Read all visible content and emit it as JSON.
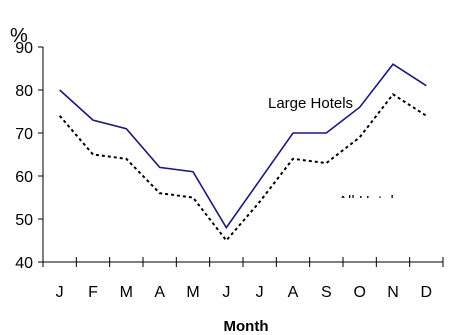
{
  "chart_data": {
    "type": "line",
    "ylabel": "%",
    "xlabel": "Month",
    "categories": [
      "J",
      "F",
      "M",
      "A",
      "M",
      "J",
      "J",
      "A",
      "S",
      "O",
      "N",
      "D"
    ],
    "ylim": [
      40,
      90
    ],
    "yticks": [
      40,
      50,
      60,
      70,
      80,
      90
    ],
    "grid": false,
    "series": [
      {
        "name": "Large Hotels",
        "color": "#1a1a7a",
        "dash": "solid",
        "values": [
          80,
          73,
          71,
          62,
          61,
          48,
          59,
          70,
          70,
          76,
          86,
          81
        ]
      },
      {
        "name": "All Hotels",
        "color": "#000000",
        "dash": "dotted",
        "values": [
          74,
          65,
          64,
          56,
          55,
          45,
          54,
          64,
          63,
          69,
          79,
          74
        ]
      }
    ]
  }
}
